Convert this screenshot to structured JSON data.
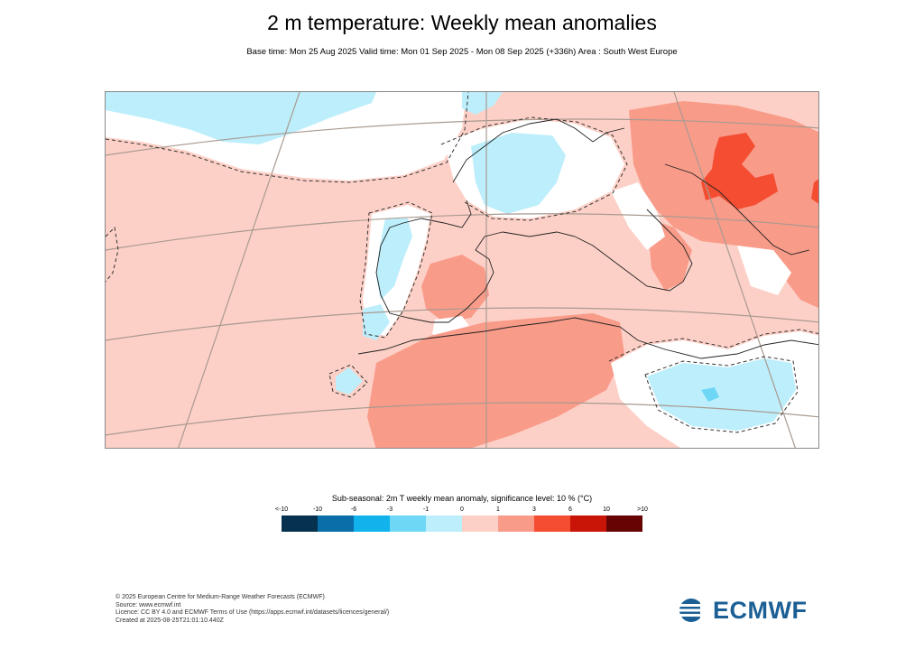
{
  "title": "2 m temperature: Weekly mean anomalies",
  "subtitle": "Base time: Mon 25 Aug 2025 Valid time: Mon 01 Sep 2025 - Mon 08 Sep 2025 (+336h) Area : South West Europe",
  "legend": {
    "title": "Sub-seasonal: 2m T weekly mean anomaly, significance level: 10 % (°C)",
    "ticks": [
      "<-10",
      "-10",
      "-6",
      "-3",
      "-1",
      "0",
      "1",
      "3",
      "6",
      "10",
      ">10"
    ],
    "colors": [
      "#06324f",
      "#0a6ea8",
      "#11b3ec",
      "#6ed7f5",
      "#bdeefb",
      "#ffffff",
      "#fdd0c7",
      "#f99b89",
      "#f54d32",
      "#c91508",
      "#660404"
    ]
  },
  "footer": [
    "© 2025 European Centre for Medium-Range Weather Forecasts (ECMWF)",
    "Source: www.ecmwf.int",
    "Licence: CC BY 4.0 and ECMWF Terms of Use (https://apps.ecmwf.int/datasets/licences/general/)",
    "Created at 2025-08-25T21:01:10.440Z"
  ],
  "logo_text": "ECMWF",
  "map": {
    "background_color": "#fdd0c7",
    "cold_color": "#bdeefb",
    "cold_strong_color": "#6ed7f5",
    "neutral_color": "#ffffff",
    "warm_color": "#f99b89",
    "warm_strong_color": "#f54d32"
  }
}
